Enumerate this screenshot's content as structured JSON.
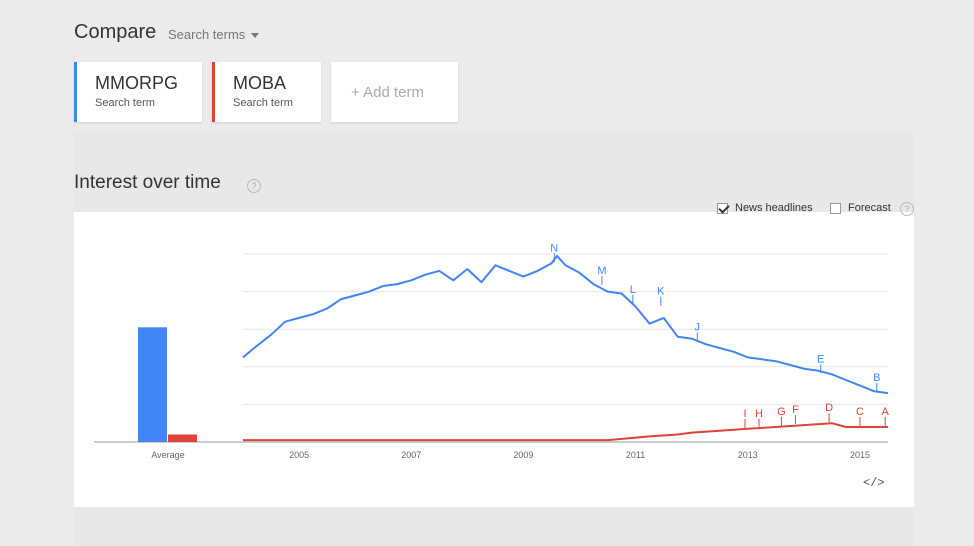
{
  "compare": {
    "title": "Compare",
    "selector_label": "Search terms"
  },
  "terms": [
    {
      "name": "MMORPG",
      "type": "Search term",
      "color": "#4285f4"
    },
    {
      "name": "MOBA",
      "type": "Search term",
      "color": "#db4437"
    }
  ],
  "add_term_label": "+ Add term",
  "section": {
    "title": "Interest over time",
    "help_glyph": "?"
  },
  "options": {
    "news_label": "News headlines",
    "news_checked": true,
    "forecast_label": "Forecast",
    "forecast_checked": false
  },
  "embed_glyph": "</>",
  "chart_data": {
    "type": "line",
    "ylim": [
      0,
      100
    ],
    "grid": true,
    "x_ticks": [
      "2005",
      "2007",
      "2009",
      "2011",
      "2013",
      "2015"
    ],
    "average_label": "Average",
    "averages": [
      {
        "term": "MMORPG",
        "value": 61
      },
      {
        "term": "MOBA",
        "value": 4
      }
    ],
    "series": [
      {
        "name": "MMORPG",
        "color": "#4285f4",
        "x": [
          2004.0,
          2004.2,
          2004.5,
          2004.75,
          2005.0,
          2005.25,
          2005.5,
          2005.75,
          2006.0,
          2006.25,
          2006.5,
          2006.75,
          2007.0,
          2007.25,
          2007.5,
          2007.75,
          2008.0,
          2008.25,
          2008.5,
          2008.75,
          2009.0,
          2009.25,
          2009.5,
          2009.6,
          2009.75,
          2010.0,
          2010.25,
          2010.5,
          2010.75,
          2011.0,
          2011.25,
          2011.5,
          2011.75,
          2012.0,
          2012.25,
          2012.5,
          2012.75,
          2013.0,
          2013.25,
          2013.5,
          2013.75,
          2014.0,
          2014.25,
          2014.5,
          2014.75,
          2015.0,
          2015.25,
          2015.5
        ],
        "values": [
          45,
          50,
          57,
          64,
          66,
          68,
          71,
          76,
          78,
          80,
          83,
          84,
          86,
          89,
          91,
          86,
          92,
          85,
          94,
          91,
          88,
          91,
          95,
          99,
          94,
          90,
          84,
          80,
          79,
          72,
          63,
          66,
          56,
          55,
          52,
          50,
          48,
          45,
          44,
          43,
          41,
          39,
          38,
          36,
          33,
          30,
          27,
          26
        ]
      },
      {
        "name": "MOBA",
        "color": "#db4437",
        "x": [
          2004.0,
          2006.0,
          2008.0,
          2010.5,
          2011.25,
          2011.75,
          2012.0,
          2012.5,
          2013.0,
          2013.5,
          2014.0,
          2014.5,
          2014.75,
          2015.0,
          2015.25,
          2015.5
        ],
        "values": [
          1,
          1,
          1,
          1,
          3,
          4,
          5,
          6,
          7,
          8,
          9,
          10,
          8,
          8,
          8,
          8
        ]
      }
    ],
    "annotations": [
      {
        "label": "N",
        "series": "MMORPG",
        "x": 2009.55,
        "y": 95
      },
      {
        "label": "M",
        "series": "MMORPG",
        "x": 2010.4,
        "y": 83
      },
      {
        "label": "L",
        "series": "MMORPG",
        "x": 2010.95,
        "y": 73
      },
      {
        "label": "K",
        "series": "MMORPG",
        "x": 2011.45,
        "y": 72
      },
      {
        "label": "J",
        "series": "MMORPG",
        "x": 2012.1,
        "y": 53
      },
      {
        "label": "E",
        "series": "MMORPG",
        "x": 2014.3,
        "y": 36
      },
      {
        "label": "B",
        "series": "MMORPG",
        "x": 2015.3,
        "y": 26
      },
      {
        "label": "I",
        "series": "MOBA",
        "x": 2012.95,
        "y": 7
      },
      {
        "label": "H",
        "series": "MOBA",
        "x": 2013.2,
        "y": 7
      },
      {
        "label": "G",
        "series": "MOBA",
        "x": 2013.6,
        "y": 8
      },
      {
        "label": "F",
        "series": "MOBA",
        "x": 2013.85,
        "y": 9
      },
      {
        "label": "D",
        "series": "MOBA",
        "x": 2014.45,
        "y": 10
      },
      {
        "label": "C",
        "series": "MOBA",
        "x": 2015.0,
        "y": 8
      },
      {
        "label": "A",
        "series": "MOBA",
        "x": 2015.45,
        "y": 8
      }
    ]
  }
}
